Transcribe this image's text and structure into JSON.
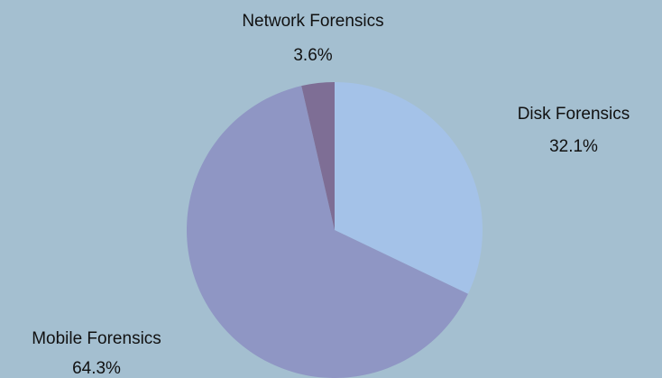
{
  "chart_data": {
    "type": "pie",
    "title": "",
    "slices": [
      {
        "label": "Disk Forensics",
        "value": 32.1,
        "value_text": "32.1%",
        "color": "#a4c2e8"
      },
      {
        "label": "Mobile Forensics",
        "value": 64.3,
        "value_text": "64.3%",
        "color": "#8f96c4"
      },
      {
        "label": "Network Forensics",
        "value": 3.6,
        "value_text": "3.6%",
        "color": "#7e6e95"
      }
    ],
    "start_angle": "12 o'clock",
    "direction": "clockwise",
    "background_color": "#a4bfd0",
    "labels_position": "outside"
  }
}
